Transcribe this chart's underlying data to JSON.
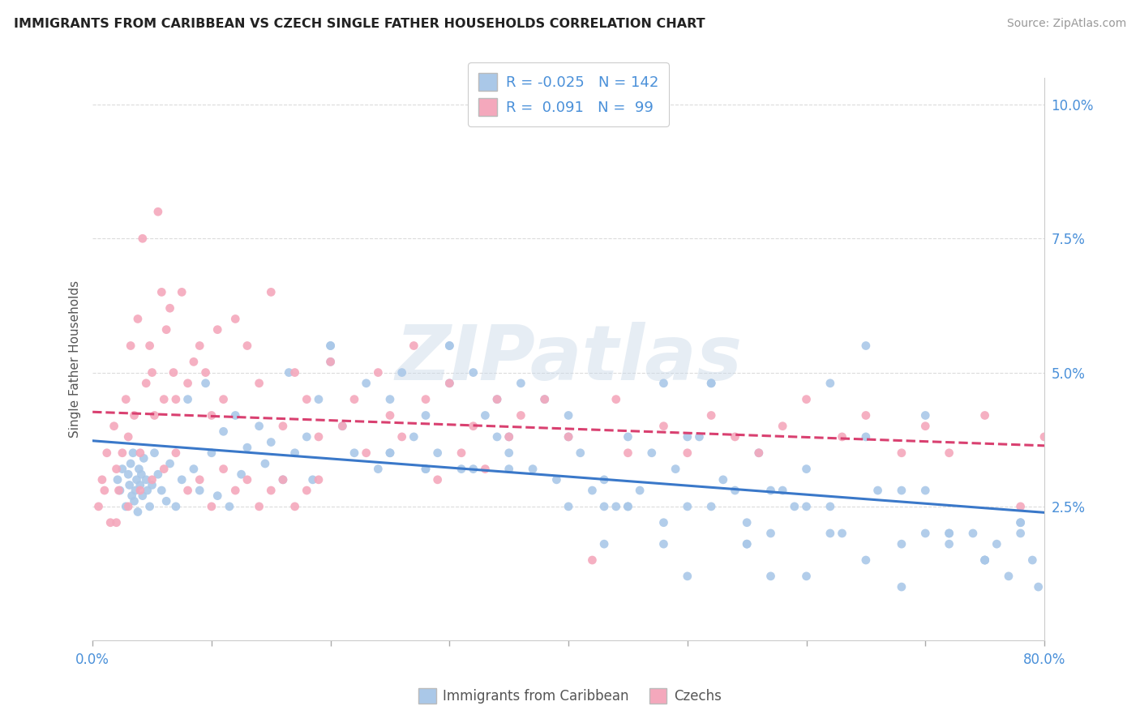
{
  "title": "IMMIGRANTS FROM CARIBBEAN VS CZECH SINGLE FATHER HOUSEHOLDS CORRELATION CHART",
  "source_text": "Source: ZipAtlas.com",
  "ylabel": "Single Father Households",
  "watermark": "ZIPatlas",
  "blue_color": "#aac8e8",
  "pink_color": "#f4a8bc",
  "blue_line_color": "#3a78c9",
  "pink_line_color": "#d94070",
  "title_color": "#222222",
  "source_color": "#999999",
  "axis_label_color": "#4a90d9",
  "background_color": "#ffffff",
  "xlim": [
    0.0,
    80.0
  ],
  "ylim": [
    0.0,
    10.5
  ],
  "yticks": [
    2.5,
    5.0,
    7.5,
    10.0
  ],
  "ytick_labels": [
    "2.5%",
    "5.0%",
    "7.5%",
    "10.0%"
  ],
  "xtick_labels": [
    "0.0%",
    "80.0%"
  ],
  "legend_blue_r": "-0.025",
  "legend_blue_n": "142",
  "legend_pink_r": "0.091",
  "legend_pink_n": "99",
  "legend1_label": "Immigrants from Caribbean",
  "legend2_label": "Czechs",
  "blue_scatter_x": [
    2.1,
    2.3,
    2.5,
    2.8,
    3.0,
    3.1,
    3.2,
    3.3,
    3.4,
    3.5,
    3.6,
    3.7,
    3.8,
    3.9,
    4.0,
    4.1,
    4.2,
    4.3,
    4.5,
    4.6,
    4.8,
    5.0,
    5.2,
    5.5,
    5.8,
    6.2,
    6.5,
    7.0,
    7.5,
    8.0,
    8.5,
    9.0,
    9.5,
    10.0,
    10.5,
    11.0,
    11.5,
    12.0,
    12.5,
    13.0,
    14.0,
    14.5,
    15.0,
    16.0,
    16.5,
    17.0,
    18.0,
    18.5,
    19.0,
    20.0,
    21.0,
    22.0,
    23.0,
    24.0,
    25.0,
    26.0,
    27.0,
    28.0,
    29.0,
    30.0,
    31.0,
    32.0,
    33.0,
    34.0,
    35.0,
    36.0,
    37.0,
    38.0,
    39.0,
    40.0,
    41.0,
    42.0,
    43.0,
    44.0,
    45.0,
    46.0,
    47.0,
    48.0,
    49.0,
    50.0,
    51.0,
    52.0,
    53.0,
    54.0,
    55.0,
    56.0,
    57.0,
    58.0,
    59.0,
    60.0,
    62.0,
    63.0,
    65.0,
    66.0,
    68.0,
    70.0,
    72.0,
    74.0,
    75.0,
    76.0,
    77.0,
    78.0,
    79.0,
    79.5,
    20.0,
    25.0,
    28.0,
    30.0,
    32.0,
    35.0,
    40.0,
    43.0,
    45.0,
    48.0,
    50.0,
    52.0,
    55.0,
    57.0,
    60.0,
    62.0,
    65.0,
    68.0,
    70.0,
    72.0,
    75.0,
    78.0,
    34.0,
    45.0,
    50.0,
    55.0,
    60.0,
    65.0,
    70.0,
    75.0,
    78.0,
    30.0,
    35.0,
    40.0,
    43.0,
    48.0,
    52.0,
    57.0,
    62.0,
    68.0,
    72.0,
    20.0,
    25.0,
    28.0
  ],
  "blue_scatter_y": [
    3.0,
    2.8,
    3.2,
    2.5,
    3.1,
    2.9,
    3.3,
    2.7,
    3.5,
    2.6,
    2.8,
    3.0,
    2.4,
    3.2,
    2.9,
    3.1,
    2.7,
    3.4,
    3.0,
    2.8,
    2.5,
    2.9,
    3.5,
    3.1,
    2.8,
    2.6,
    3.3,
    2.5,
    3.0,
    4.5,
    3.2,
    2.8,
    4.8,
    3.5,
    2.7,
    3.9,
    2.5,
    4.2,
    3.1,
    3.6,
    4.0,
    3.3,
    3.7,
    3.0,
    5.0,
    3.5,
    3.8,
    3.0,
    4.5,
    5.2,
    4.0,
    3.5,
    4.8,
    3.2,
    4.5,
    5.0,
    3.8,
    4.2,
    3.5,
    4.8,
    3.2,
    5.0,
    4.2,
    3.8,
    3.5,
    4.8,
    3.2,
    4.5,
    3.0,
    4.2,
    3.5,
    2.8,
    3.0,
    2.5,
    3.8,
    2.8,
    3.5,
    2.2,
    3.2,
    2.5,
    3.8,
    2.5,
    3.0,
    2.8,
    2.2,
    3.5,
    2.0,
    2.8,
    2.5,
    3.2,
    2.5,
    2.0,
    1.5,
    2.8,
    1.8,
    2.0,
    1.8,
    2.0,
    1.5,
    1.8,
    1.2,
    2.0,
    1.5,
    1.0,
    5.5,
    3.5,
    3.2,
    5.5,
    3.2,
    3.8,
    2.5,
    1.8,
    2.5,
    4.8,
    1.2,
    4.8,
    1.8,
    2.8,
    1.2,
    2.0,
    5.5,
    1.0,
    2.8,
    2.0,
    1.5,
    2.2,
    4.5,
    2.5,
    3.8,
    1.8,
    2.5,
    3.8,
    4.2,
    1.5,
    2.2,
    5.5,
    3.2,
    3.8,
    2.5,
    1.8,
    4.8,
    1.2,
    4.8,
    2.8,
    2.0,
    5.5,
    3.5,
    3.2
  ],
  "pink_scatter_x": [
    0.5,
    0.8,
    1.0,
    1.2,
    1.5,
    1.8,
    2.0,
    2.2,
    2.5,
    2.8,
    3.0,
    3.2,
    3.5,
    3.8,
    4.0,
    4.2,
    4.5,
    4.8,
    5.0,
    5.2,
    5.5,
    5.8,
    6.0,
    6.2,
    6.5,
    6.8,
    7.0,
    7.5,
    8.0,
    8.5,
    9.0,
    9.5,
    10.0,
    10.5,
    11.0,
    12.0,
    13.0,
    14.0,
    15.0,
    16.0,
    17.0,
    18.0,
    19.0,
    20.0,
    21.0,
    22.0,
    23.0,
    24.0,
    25.0,
    26.0,
    27.0,
    28.0,
    29.0,
    30.0,
    31.0,
    32.0,
    33.0,
    34.0,
    35.0,
    36.0,
    38.0,
    40.0,
    42.0,
    44.0,
    45.0,
    48.0,
    50.0,
    52.0,
    54.0,
    56.0,
    58.0,
    60.0,
    63.0,
    65.0,
    68.0,
    70.0,
    72.0,
    75.0,
    78.0,
    80.0,
    2.0,
    3.0,
    4.0,
    5.0,
    6.0,
    7.0,
    8.0,
    9.0,
    10.0,
    11.0,
    12.0,
    13.0,
    14.0,
    15.0,
    16.0,
    17.0,
    18.0,
    19.0
  ],
  "pink_scatter_y": [
    2.5,
    3.0,
    2.8,
    3.5,
    2.2,
    4.0,
    3.2,
    2.8,
    3.5,
    4.5,
    3.8,
    5.5,
    4.2,
    6.0,
    3.5,
    7.5,
    4.8,
    5.5,
    5.0,
    4.2,
    8.0,
    6.5,
    4.5,
    5.8,
    6.2,
    5.0,
    4.5,
    6.5,
    4.8,
    5.2,
    5.5,
    5.0,
    4.2,
    5.8,
    4.5,
    6.0,
    5.5,
    4.8,
    6.5,
    4.0,
    5.0,
    4.5,
    3.8,
    5.2,
    4.0,
    4.5,
    3.5,
    5.0,
    4.2,
    3.8,
    5.5,
    4.5,
    3.0,
    4.8,
    3.5,
    4.0,
    3.2,
    4.5,
    3.8,
    4.2,
    4.5,
    3.8,
    1.5,
    4.5,
    3.5,
    4.0,
    3.5,
    4.2,
    3.8,
    3.5,
    4.0,
    4.5,
    3.8,
    4.2,
    3.5,
    4.0,
    3.5,
    4.2,
    2.5,
    3.8,
    2.2,
    2.5,
    2.8,
    3.0,
    3.2,
    3.5,
    2.8,
    3.0,
    2.5,
    3.2,
    2.8,
    3.0,
    2.5,
    2.8,
    3.0,
    2.5,
    2.8,
    3.0
  ]
}
